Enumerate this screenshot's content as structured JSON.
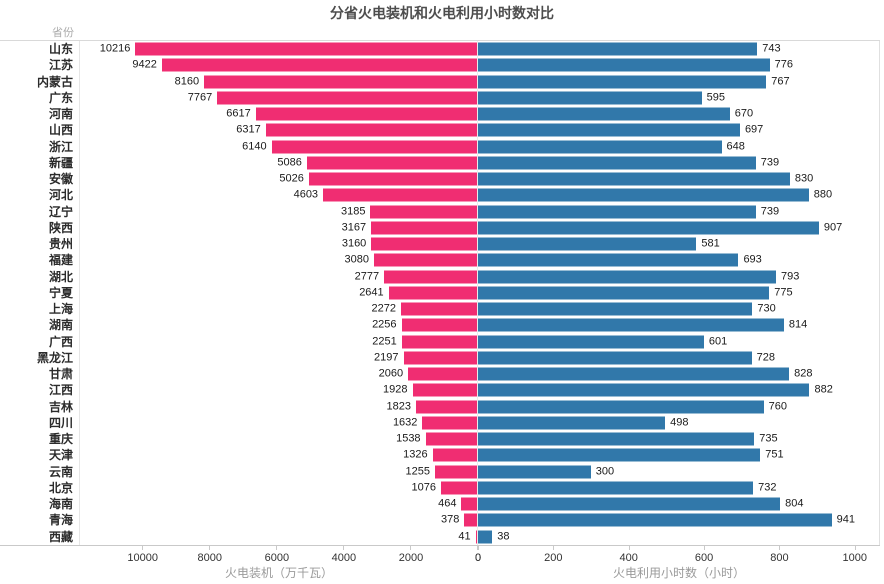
{
  "title": "分省火电装机和火电利用小时数对比",
  "header": {
    "province_col": "省份"
  },
  "colors": {
    "capacity_bar": "#f02d72",
    "hours_bar": "#3178aa"
  },
  "chart_data": {
    "type": "bar",
    "orientation": "horizontal-diverging",
    "title": "分省火电装机和火电利用小时数对比",
    "categories": [
      "山东",
      "江苏",
      "内蒙古",
      "广东",
      "河南",
      "山西",
      "浙江",
      "新疆",
      "安徽",
      "河北",
      "辽宁",
      "陕西",
      "贵州",
      "福建",
      "湖北",
      "宁夏",
      "上海",
      "湖南",
      "广西",
      "黑龙江",
      "甘肃",
      "江西",
      "吉林",
      "四川",
      "重庆",
      "天津",
      "云南",
      "北京",
      "海南",
      "青海",
      "西藏"
    ],
    "series": [
      {
        "name": "火电装机",
        "xlabel": "火电装机（万千瓦）",
        "direction": "left",
        "color": "#f02d72",
        "axis_max": 11870,
        "ticks": [
          10000,
          8000,
          6000,
          4000,
          2000,
          0
        ],
        "values": [
          10216,
          9422,
          8160,
          7767,
          6617,
          6317,
          6140,
          5086,
          5026,
          4603,
          3185,
          3167,
          3160,
          3080,
          2777,
          2641,
          2272,
          2256,
          2251,
          2197,
          2060,
          1928,
          1823,
          1632,
          1538,
          1326,
          1255,
          1076,
          464,
          378,
          41
        ]
      },
      {
        "name": "火电利用小时数",
        "xlabel": "火电利用小时数（小时）",
        "direction": "right",
        "color": "#3178aa",
        "axis_max": 1067,
        "ticks": [
          0,
          200,
          400,
          600,
          800,
          1000
        ],
        "values": [
          743,
          776,
          767,
          595,
          670,
          697,
          648,
          739,
          830,
          880,
          739,
          907,
          581,
          693,
          793,
          775,
          730,
          814,
          601,
          728,
          828,
          882,
          760,
          498,
          735,
          751,
          300,
          732,
          804,
          941,
          38
        ]
      }
    ],
    "legend": "none",
    "grid": false
  }
}
